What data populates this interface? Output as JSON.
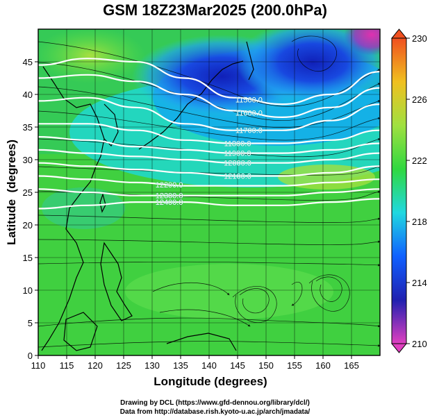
{
  "title": "GSM 18Z23Mar2025 (200.0hPa)",
  "credits": {
    "line1": "Drawing by DCL (https://www.gfd-dennou.org/library/dcl/)",
    "line2": "Data from http://database.rish.kyoto-u.ac.jp/arch/jmadata/"
  },
  "chart_data": {
    "type": "heatmap",
    "title": "GSM 18Z23Mar2025 (200.0hPa)",
    "xlabel": "Longitude (degrees)",
    "ylabel": "Latitude  (degrees)",
    "xlim": [
      110,
      170
    ],
    "ylim": [
      0,
      50
    ],
    "x_ticks": [
      110,
      115,
      120,
      125,
      130,
      135,
      140,
      145,
      150,
      155,
      160,
      165
    ],
    "y_ticks": [
      0,
      5,
      10,
      15,
      20,
      25,
      30,
      35,
      40,
      45
    ],
    "colorbar": {
      "min": 210,
      "max": 230,
      "ticks": [
        210,
        214,
        218,
        222,
        226,
        230
      ],
      "colors": [
        "#e040c0",
        "#2020b0",
        "#1060ff",
        "#20d8e0",
        "#30d840",
        "#a0e040",
        "#f0c020",
        "#f05020"
      ]
    },
    "contours": [
      {
        "label": "11500.0",
        "lats": [
          44.5,
          45.5,
          45.0,
          42.5,
          39.5,
          38.5,
          40.0,
          43.5
        ]
      },
      {
        "label": "11600.0",
        "lats": [
          42.5,
          43.0,
          42.0,
          40.0,
          37.5,
          36.5,
          38.0,
          41.0
        ]
      },
      {
        "label": "11700.0",
        "lats": [
          39.0,
          39.5,
          38.0,
          35.5,
          34.5,
          34.5,
          36.0,
          38.5
        ]
      },
      {
        "label": "11800.0",
        "lats": [
          35.5,
          35.5,
          34.5,
          33.0,
          32.5,
          32.5,
          33.0,
          34.5
        ]
      },
      {
        "label": "11900.0",
        "lats": [
          33.5,
          33.0,
          32.0,
          31.5,
          31.0,
          31.0,
          31.5,
          32.5
        ]
      },
      {
        "label": "12000.0",
        "lats": [
          31.5,
          31.0,
          30.5,
          30.0,
          29.5,
          29.5,
          30.0,
          31.0
        ]
      },
      {
        "label": "12100.0",
        "lats": [
          29.5,
          29.0,
          28.5,
          28.0,
          27.5,
          27.5,
          28.0,
          29.0
        ]
      },
      {
        "label": "12200.0",
        "lats": [
          27.5,
          27.0,
          26.5,
          26.0,
          26.0,
          26.0,
          26.5,
          27.0
        ]
      },
      {
        "label": "12300.0",
        "lats": [
          25.5,
          25.0,
          24.5,
          24.5,
          24.5,
          24.5,
          25.0,
          25.5
        ]
      },
      {
        "label": "12400.0",
        "lats": [
          22.5,
          23.0,
          23.5,
          23.5,
          23.0,
          23.0,
          23.5,
          24.0
        ]
      }
    ]
  }
}
